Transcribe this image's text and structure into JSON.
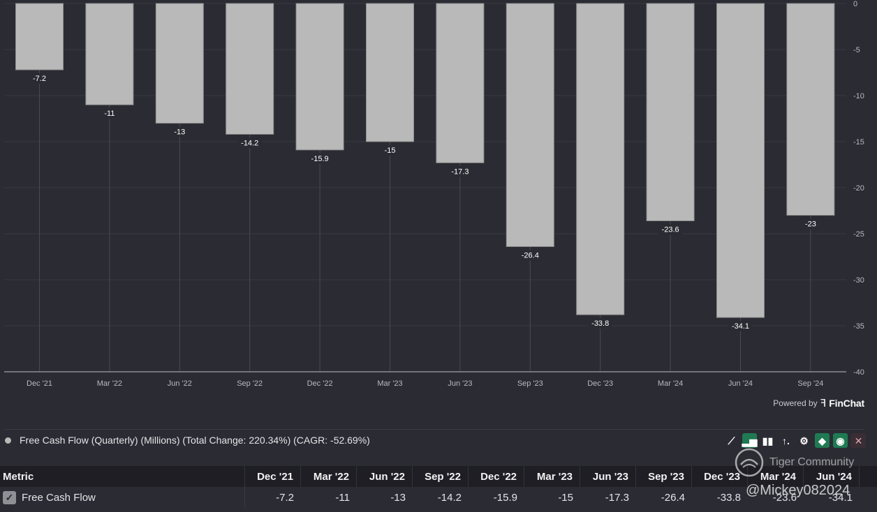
{
  "chart_data": {
    "type": "bar",
    "categories": [
      "Dec '21",
      "Mar '22",
      "Jun '22",
      "Sep '22",
      "Dec '22",
      "Mar '23",
      "Jun '23",
      "Sep '23",
      "Dec '23",
      "Mar '24",
      "Jun '24",
      "Sep '24"
    ],
    "values": [
      -7.2,
      -11,
      -13,
      -14.2,
      -15.9,
      -15,
      -17.3,
      -26.4,
      -33.8,
      -23.6,
      -34.1,
      -23
    ],
    "data_labels": [
      "-7.2",
      "-11",
      "-13",
      "-14.2",
      "-15.9",
      "-15",
      "-17.3",
      "-26.4",
      "-33.8",
      "-23.6",
      "-34.1",
      "-23"
    ],
    "ylim": [
      -40,
      0
    ],
    "yticks": [
      0,
      -5,
      -10,
      -15,
      -20,
      -25,
      -30,
      -35,
      -40
    ],
    "title": "",
    "xlabel": "",
    "ylabel": "",
    "y_axis_side": "right",
    "grid": "vertical lines at categories",
    "bar_color": "#b9b9b9"
  },
  "credit": {
    "powered_by": "Powered by",
    "brand": "FinChat",
    "icon": "finchat-logo-icon"
  },
  "legend": {
    "text": "Free Cash Flow (Quarterly) (Millions) (Total Change: 220.34%) (CAGR: -52.69%)",
    "dot_color": "#b8b8b8"
  },
  "toolbar": {
    "tools": [
      {
        "name": "line-chart-icon",
        "glyph": "⟋",
        "active": false
      },
      {
        "name": "bar-chart-icon",
        "glyph": "▂▅",
        "active": true
      },
      {
        "name": "grouped-bar-icon",
        "glyph": "▮▮",
        "active": false
      },
      {
        "name": "sort-icon",
        "glyph": "↑.",
        "active": false
      },
      {
        "name": "gear-icon",
        "glyph": "⚙",
        "active": false
      },
      {
        "name": "tag-icon",
        "glyph": "◆",
        "active": true
      },
      {
        "name": "eye-icon",
        "glyph": "◉",
        "active": true
      },
      {
        "name": "close-icon",
        "glyph": "✕",
        "active": false
      }
    ],
    "accent": "#1f7a53"
  },
  "table": {
    "header": {
      "metric": "Metric",
      "periods": [
        "Dec '21",
        "Mar '22",
        "Jun '22",
        "Sep '22",
        "Dec '22",
        "Mar '23",
        "Jun '23",
        "Sep '23",
        "Dec '23",
        "Mar '24",
        "Jun '24"
      ]
    },
    "row": {
      "checkbox_mark": "✓",
      "label": "Free Cash Flow",
      "values": [
        "-7.2",
        "-11",
        "-13",
        "-14.2",
        "-15.9",
        "-15",
        "-17.3",
        "-26.4",
        "-33.8",
        "-23.6",
        "-34.1"
      ]
    }
  },
  "watermark": {
    "line1": "Tiger Community",
    "line2": "@Mickey082024"
  }
}
